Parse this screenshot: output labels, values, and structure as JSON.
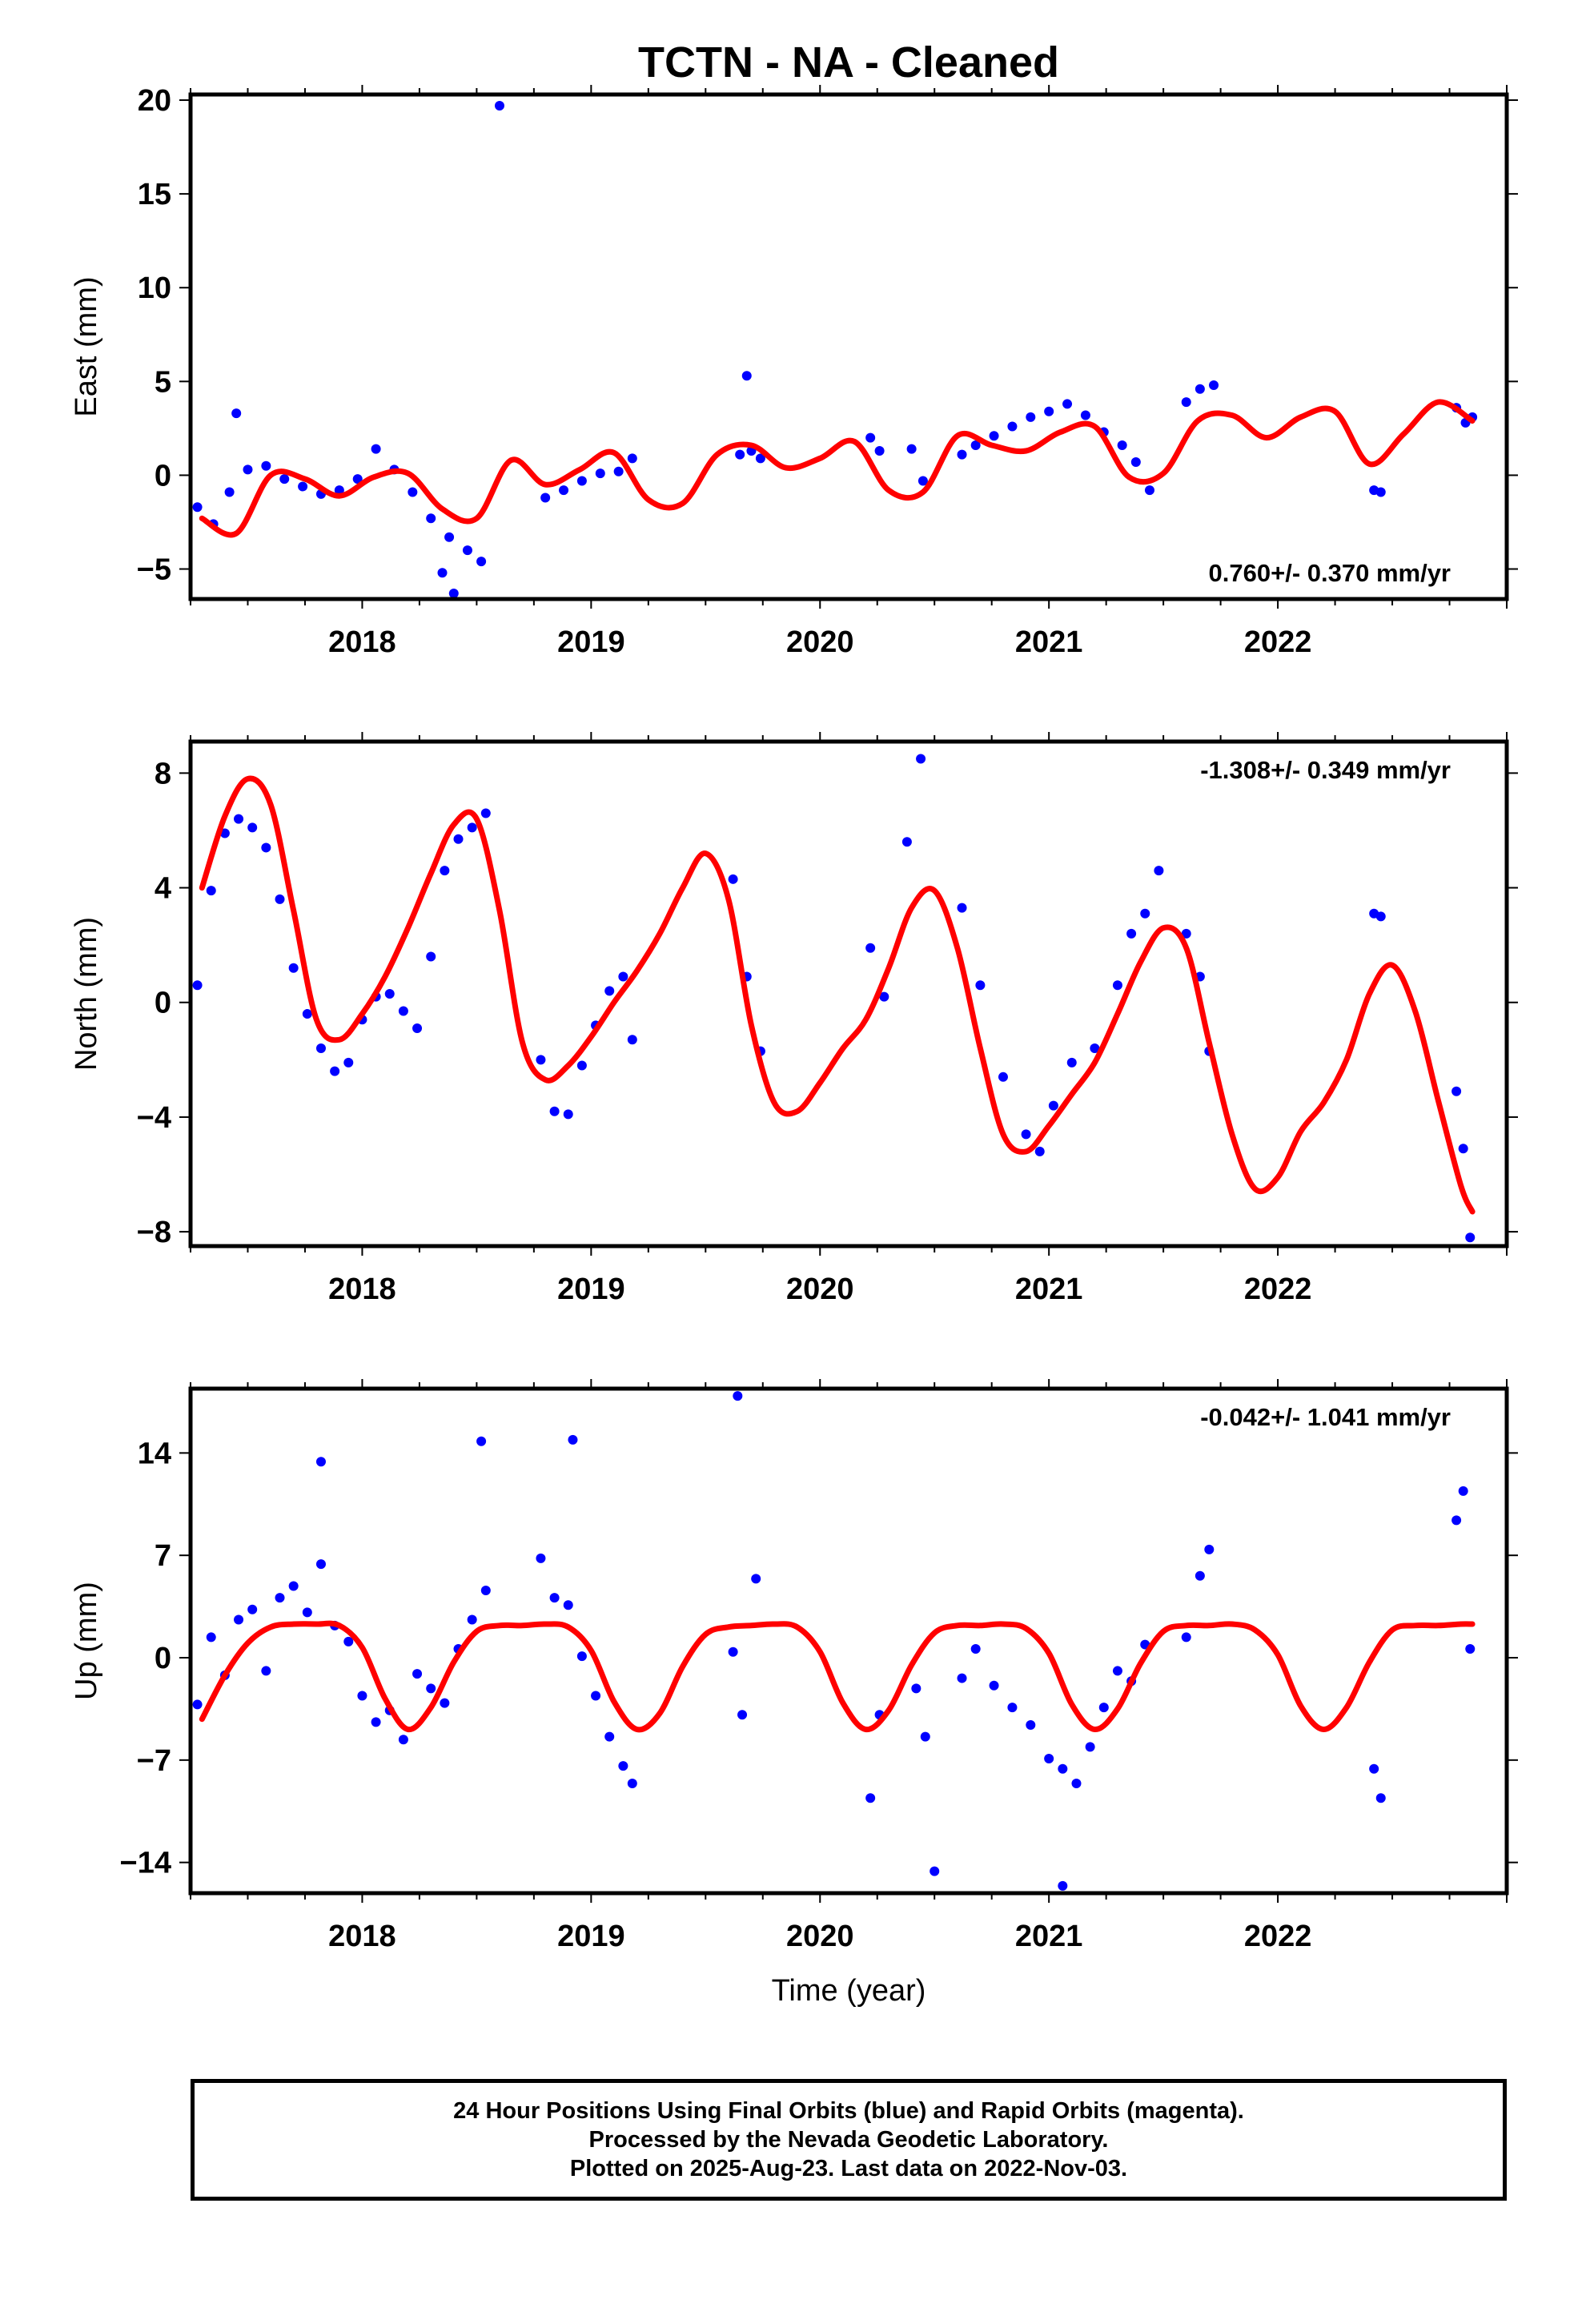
{
  "title": "TCTN  - NA - Cleaned",
  "xlabel": "Time (year)",
  "colors": {
    "data": "#0000ff",
    "model": "#ff0000",
    "frame": "#000000"
  },
  "footer": {
    "line1": "24 Hour Positions Using Final Orbits (blue) and Rapid Orbits (magenta).",
    "line2": "Processed by the Nevada Geodetic Laboratory.",
    "line3": "Plotted on 2025-Aug-23. Last data on 2022-Nov-03."
  },
  "chart_data": [
    {
      "type": "scatter",
      "ylabel": "East (mm)",
      "xlim": [
        2017.25,
        2023.0
      ],
      "ylim": [
        -6.6,
        20.3
      ],
      "xticks": [
        2018,
        2019,
        2020,
        2021,
        2022
      ],
      "yticks": [
        -5,
        0,
        5,
        10,
        15,
        20
      ],
      "rate_text": "0.760+/- 0.370 mm/yr",
      "rate_position": "bottom-right",
      "model": {
        "x": [
          2017.3,
          2017.45,
          2017.6,
          2017.75,
          2017.9,
          2018.05,
          2018.2,
          2018.35,
          2018.5,
          2018.65,
          2018.8,
          2018.95,
          2019.1,
          2019.25,
          2019.4,
          2019.55,
          2019.7,
          2019.85,
          2020.0,
          2020.15,
          2020.3,
          2020.45,
          2020.6,
          2020.75,
          2020.9,
          2021.05,
          2021.2,
          2021.35,
          2021.5,
          2021.65,
          2021.8,
          2021.95,
          2022.1,
          2022.25,
          2022.4,
          2022.55,
          2022.7,
          2022.85
        ],
        "y": [
          -2.3,
          -3.1,
          0.0,
          -0.2,
          -1.1,
          -0.1,
          0.1,
          -1.8,
          -2.3,
          0.8,
          -0.5,
          0.3,
          1.2,
          -1.3,
          -1.5,
          1.1,
          1.6,
          0.4,
          0.9,
          1.8,
          -0.8,
          -0.9,
          2.1,
          1.6,
          1.3,
          2.3,
          2.6,
          -0.1,
          0.1,
          2.9,
          3.2,
          2.0,
          3.1,
          3.4,
          0.6,
          2.2,
          3.9,
          2.9
        ]
      },
      "points": {
        "x": [
          2017.28,
          2017.35,
          2017.42,
          2017.5,
          2017.58,
          2017.66,
          2017.74,
          2017.82,
          2017.9,
          2017.98,
          2018.06,
          2018.14,
          2018.22,
          2018.3,
          2018.38,
          2018.46,
          2018.52,
          2018.8,
          2018.88,
          2018.96,
          2019.04,
          2019.12,
          2019.18,
          2019.65,
          2019.7,
          2019.74,
          2020.22,
          2020.26,
          2020.4,
          2020.45,
          2020.62,
          2020.68,
          2020.76,
          2020.84,
          2020.92,
          2021.0,
          2021.08,
          2021.16,
          2021.24,
          2021.32,
          2021.38,
          2021.44,
          2021.6,
          2021.66,
          2021.72,
          2022.42,
          2022.45,
          2022.78,
          2022.82,
          2022.85,
          2018.6,
          2017.45,
          2018.4,
          2018.35,
          2019.68
        ],
        "y": [
          -1.7,
          -2.6,
          -0.9,
          0.3,
          0.5,
          -0.2,
          -0.6,
          -1.0,
          -0.8,
          -0.2,
          1.4,
          0.3,
          -0.9,
          -2.3,
          -3.3,
          -4.0,
          -4.6,
          -1.2,
          -0.8,
          -0.3,
          0.1,
          0.2,
          0.9,
          1.1,
          1.3,
          0.9,
          2.0,
          1.3,
          1.4,
          -0.3,
          1.1,
          1.6,
          2.1,
          2.6,
          3.1,
          3.4,
          3.8,
          3.2,
          2.3,
          1.6,
          0.7,
          -0.8,
          3.9,
          4.6,
          4.8,
          -0.8,
          -0.9,
          3.6,
          2.8,
          3.1,
          19.7,
          3.3,
          -6.3,
          -5.2,
          5.3
        ]
      }
    },
    {
      "type": "scatter",
      "ylabel": "North (mm)",
      "xlim": [
        2017.25,
        2023.0
      ],
      "ylim": [
        -8.5,
        9.1
      ],
      "xticks": [
        2018,
        2019,
        2020,
        2021,
        2022
      ],
      "yticks": [
        -8,
        -4,
        0,
        4,
        8
      ],
      "rate_text": "-1.308+/- 0.349 mm/yr",
      "rate_position": "top-right",
      "model": {
        "x": [
          2017.3,
          2017.4,
          2017.5,
          2017.6,
          2017.7,
          2017.8,
          2017.9,
          2018.0,
          2018.1,
          2018.2,
          2018.3,
          2018.4,
          2018.5,
          2018.6,
          2018.7,
          2018.8,
          2018.9,
          2019.0,
          2019.1,
          2019.2,
          2019.3,
          2019.4,
          2019.5,
          2019.6,
          2019.7,
          2019.8,
          2019.9,
          2020.0,
          2020.1,
          2020.2,
          2020.3,
          2020.4,
          2020.5,
          2020.6,
          2020.7,
          2020.8,
          2020.9,
          2021.0,
          2021.1,
          2021.2,
          2021.3,
          2021.4,
          2021.5,
          2021.6,
          2021.7,
          2021.8,
          2021.9,
          2022.0,
          2022.1,
          2022.2,
          2022.3,
          2022.4,
          2022.5,
          2022.6,
          2022.7,
          2022.8,
          2022.85
        ],
        "y": [
          4.0,
          6.5,
          7.8,
          6.9,
          3.2,
          -0.6,
          -1.3,
          -0.4,
          0.9,
          2.6,
          4.5,
          6.2,
          6.4,
          3.2,
          -1.4,
          -2.7,
          -2.2,
          -1.2,
          0.0,
          1.1,
          2.4,
          4.0,
          5.2,
          3.6,
          -0.8,
          -3.5,
          -3.8,
          -2.8,
          -1.6,
          -0.6,
          1.2,
          3.3,
          3.9,
          1.9,
          -1.6,
          -4.6,
          -5.2,
          -4.3,
          -3.2,
          -2.1,
          -0.4,
          1.4,
          2.6,
          1.9,
          -1.4,
          -4.6,
          -6.5,
          -6.1,
          -4.5,
          -3.5,
          -2.0,
          0.3,
          1.3,
          -0.3,
          -3.4,
          -6.4,
          -7.3
        ]
      },
      "points": {
        "x": [
          2017.28,
          2017.34,
          2017.4,
          2017.46,
          2017.52,
          2017.58,
          2017.64,
          2017.7,
          2017.76,
          2017.82,
          2017.88,
          2017.94,
          2018.0,
          2018.06,
          2018.12,
          2018.18,
          2018.24,
          2018.3,
          2018.36,
          2018.42,
          2018.48,
          2018.54,
          2018.78,
          2018.84,
          2018.9,
          2018.96,
          2019.02,
          2019.08,
          2019.14,
          2019.18,
          2019.62,
          2019.68,
          2019.74,
          2020.22,
          2020.28,
          2020.38,
          2020.44,
          2020.62,
          2020.7,
          2020.8,
          2020.9,
          2020.96,
          2021.02,
          2021.1,
          2021.2,
          2021.3,
          2021.36,
          2021.42,
          2021.48,
          2021.6,
          2021.66,
          2021.7,
          2022.42,
          2022.45,
          2022.78,
          2022.81,
          2022.84
        ],
        "y": [
          0.6,
          3.9,
          5.9,
          6.4,
          6.1,
          5.4,
          3.6,
          1.2,
          -0.4,
          -1.6,
          -2.4,
          -2.1,
          -0.6,
          0.2,
          0.3,
          -0.3,
          -0.9,
          1.6,
          4.6,
          5.7,
          6.1,
          6.6,
          -2.0,
          -3.8,
          -3.9,
          -2.2,
          -0.8,
          0.4,
          0.9,
          -1.3,
          4.3,
          0.9,
          -1.7,
          1.9,
          0.2,
          5.6,
          8.5,
          3.3,
          0.6,
          -2.6,
          -4.6,
          -5.2,
          -3.6,
          -2.1,
          -1.6,
          0.6,
          2.4,
          3.1,
          4.6,
          2.4,
          0.9,
          -1.7,
          3.1,
          3.0,
          -3.1,
          -5.1,
          -8.2
        ]
      }
    },
    {
      "type": "scatter",
      "ylabel": "Up (mm)",
      "xlim": [
        2017.25,
        2023.0
      ],
      "ylim": [
        -16.1,
        18.4
      ],
      "xticks": [
        2018,
        2019,
        2020,
        2021,
        2022
      ],
      "yticks": [
        -14,
        -7,
        0,
        7,
        14
      ],
      "rate_text": "-0.042+/- 1.041 mm/yr",
      "rate_position": "top-right",
      "model": {
        "x": [
          2017.3,
          2017.4,
          2017.5,
          2017.6,
          2017.7,
          2017.8,
          2017.9,
          2018.0,
          2018.1,
          2018.2,
          2018.3,
          2018.4,
          2018.5,
          2018.6,
          2018.7,
          2018.8,
          2018.9,
          2019.0,
          2019.1,
          2019.2,
          2019.3,
          2019.4,
          2019.5,
          2019.6,
          2019.7,
          2019.8,
          2019.9,
          2020.0,
          2020.1,
          2020.2,
          2020.3,
          2020.4,
          2020.5,
          2020.6,
          2020.7,
          2020.8,
          2020.9,
          2021.0,
          2021.1,
          2021.2,
          2021.3,
          2021.4,
          2021.5,
          2021.6,
          2021.7,
          2021.8,
          2021.9,
          2022.0,
          2022.1,
          2022.2,
          2022.3,
          2022.4,
          2022.5,
          2022.6,
          2022.7,
          2022.8,
          2022.85
        ],
        "y": [
          -4.2,
          -1.2,
          1.0,
          2.1,
          2.3,
          2.3,
          2.2,
          0.7,
          -2.8,
          -4.9,
          -3.4,
          -0.3,
          1.8,
          2.2,
          2.2,
          2.3,
          2.1,
          0.5,
          -3.0,
          -4.9,
          -3.8,
          -0.6,
          1.6,
          2.1,
          2.2,
          2.3,
          2.1,
          0.4,
          -3.1,
          -4.9,
          -3.6,
          -0.5,
          1.7,
          2.2,
          2.2,
          2.3,
          2.0,
          0.3,
          -3.2,
          -4.9,
          -3.5,
          -0.4,
          1.8,
          2.2,
          2.2,
          2.3,
          1.9,
          0.2,
          -3.3,
          -4.9,
          -3.4,
          -0.3,
          1.9,
          2.2,
          2.2,
          2.3,
          2.3
        ]
      },
      "points": {
        "x": [
          2017.28,
          2017.34,
          2017.4,
          2017.46,
          2017.52,
          2017.58,
          2017.64,
          2017.7,
          2017.76,
          2017.82,
          2017.88,
          2017.94,
          2018.0,
          2018.06,
          2018.12,
          2018.18,
          2018.24,
          2018.3,
          2018.36,
          2018.42,
          2018.48,
          2018.54,
          2018.78,
          2018.84,
          2018.9,
          2018.96,
          2019.02,
          2019.08,
          2019.14,
          2019.18,
          2019.62,
          2019.66,
          2019.72,
          2020.22,
          2020.26,
          2020.42,
          2020.46,
          2020.62,
          2020.68,
          2020.76,
          2020.84,
          2020.92,
          2021.0,
          2021.06,
          2021.12,
          2021.18,
          2021.24,
          2021.3,
          2021.36,
          2021.42,
          2021.6,
          2021.66,
          2021.7,
          2022.42,
          2022.45,
          2022.78,
          2022.81,
          2022.84,
          2019.64,
          2017.82,
          2018.92,
          2018.52,
          2020.5,
          2021.06
        ],
        "y": [
          -3.2,
          1.4,
          -1.2,
          2.6,
          3.3,
          -0.9,
          4.1,
          4.9,
          3.1,
          6.4,
          2.2,
          1.1,
          -2.6,
          -4.4,
          -3.6,
          -5.6,
          -1.1,
          -2.1,
          -3.1,
          0.6,
          2.6,
          4.6,
          6.8,
          4.1,
          3.6,
          0.1,
          -2.6,
          -5.4,
          -7.4,
          -8.6,
          0.4,
          -3.9,
          5.4,
          -9.6,
          -3.9,
          -2.1,
          -5.4,
          -1.4,
          0.6,
          -1.9,
          -3.4,
          -4.6,
          -6.9,
          -7.6,
          -8.6,
          -6.1,
          -3.4,
          -0.9,
          -1.6,
          0.9,
          1.4,
          5.6,
          7.4,
          -7.6,
          -9.6,
          9.4,
          11.4,
          0.6,
          17.9,
          13.4,
          14.9,
          14.8,
          -14.6,
          -15.6
        ]
      }
    }
  ]
}
